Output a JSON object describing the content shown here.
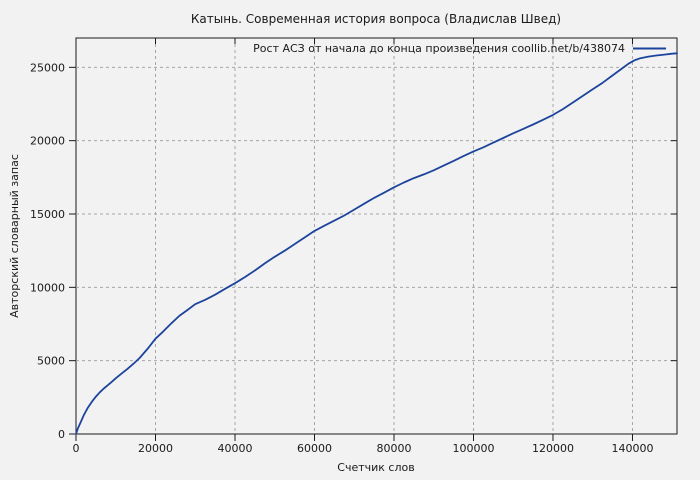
{
  "page": {
    "background_color": "#f2f2f2",
    "border_color": "#1a1a1a",
    "text_color": "#1a1a1a",
    "grid_color": "#a6a6a6"
  },
  "chart_data": {
    "type": "line",
    "title": "Катынь. Современная история вопроса (Владислав Швед)",
    "xlabel": "Счетчик слов",
    "ylabel": "Авторский словарный запас",
    "legend": "Рост АСЗ от начала до конца произведения coollib.net/b/438074",
    "legend_position": "top-right-inside",
    "grid": true,
    "xlim": [
      0,
      151200
    ],
    "ylim": [
      0,
      27000
    ],
    "x_ticks": [
      0,
      20000,
      40000,
      60000,
      80000,
      100000,
      120000,
      140000
    ],
    "y_ticks": [
      0,
      5000,
      10000,
      15000,
      20000,
      25000
    ],
    "series": [
      {
        "name": "Рост АСЗ от начала до конца произведения coollib.net/b/438074",
        "color": "#1c449c",
        "points": [
          [
            0,
            0
          ],
          [
            500,
            400
          ],
          [
            1000,
            700
          ],
          [
            1500,
            1000
          ],
          [
            2000,
            1300
          ],
          [
            3000,
            1800
          ],
          [
            4000,
            2200
          ],
          [
            5000,
            2550
          ],
          [
            6000,
            2840
          ],
          [
            7000,
            3100
          ],
          [
            8000,
            3330
          ],
          [
            9000,
            3560
          ],
          [
            10000,
            3800
          ],
          [
            11500,
            4130
          ],
          [
            13000,
            4450
          ],
          [
            14500,
            4800
          ],
          [
            16000,
            5180
          ],
          [
            18000,
            5800
          ],
          [
            20000,
            6500
          ],
          [
            22000,
            7000
          ],
          [
            24000,
            7550
          ],
          [
            26000,
            8050
          ],
          [
            28000,
            8450
          ],
          [
            30000,
            8850
          ],
          [
            32500,
            9150
          ],
          [
            35000,
            9500
          ],
          [
            37500,
            9900
          ],
          [
            40000,
            10280
          ],
          [
            42500,
            10700
          ],
          [
            45000,
            11150
          ],
          [
            47500,
            11630
          ],
          [
            50000,
            12080
          ],
          [
            52500,
            12500
          ],
          [
            55000,
            12950
          ],
          [
            57500,
            13400
          ],
          [
            60000,
            13850
          ],
          [
            62500,
            14200
          ],
          [
            65000,
            14550
          ],
          [
            67500,
            14900
          ],
          [
            70000,
            15300
          ],
          [
            72500,
            15700
          ],
          [
            75000,
            16100
          ],
          [
            77500,
            16450
          ],
          [
            80000,
            16820
          ],
          [
            82500,
            17150
          ],
          [
            85000,
            17450
          ],
          [
            87500,
            17700
          ],
          [
            90000,
            17980
          ],
          [
            92500,
            18300
          ],
          [
            95000,
            18620
          ],
          [
            97500,
            18950
          ],
          [
            100000,
            19270
          ],
          [
            102500,
            19550
          ],
          [
            105000,
            19870
          ],
          [
            107500,
            20180
          ],
          [
            110000,
            20500
          ],
          [
            112500,
            20800
          ],
          [
            115000,
            21100
          ],
          [
            117500,
            21420
          ],
          [
            120000,
            21760
          ],
          [
            122500,
            22150
          ],
          [
            125000,
            22600
          ],
          [
            127500,
            23050
          ],
          [
            130000,
            23500
          ],
          [
            132500,
            23950
          ],
          [
            135000,
            24450
          ],
          [
            137500,
            24950
          ],
          [
            139000,
            25250
          ],
          [
            140500,
            25480
          ],
          [
            142000,
            25620
          ],
          [
            144000,
            25730
          ],
          [
            146000,
            25810
          ],
          [
            148000,
            25870
          ],
          [
            150000,
            25930
          ],
          [
            151200,
            25960
          ]
        ]
      }
    ]
  }
}
